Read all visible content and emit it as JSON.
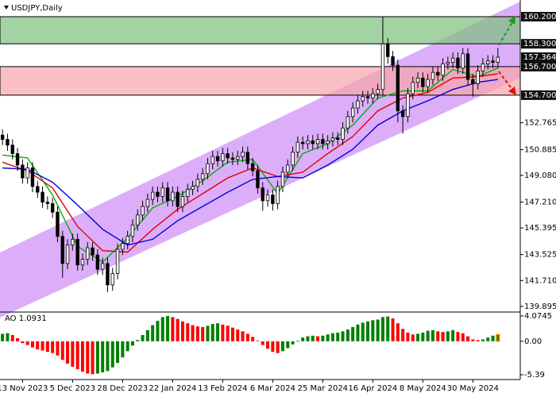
{
  "header": {
    "title": "USDJPY,Daily"
  },
  "chart_data": {
    "type": "candlestick",
    "categories": [
      null,
      null,
      null,
      null,
      "13 Nov 2023",
      null,
      null,
      null,
      null,
      null,
      null,
      null,
      null,
      null,
      "5 Dec 2023",
      null,
      null,
      null,
      null,
      null,
      null,
      null,
      null,
      null,
      "28 Dec 2023",
      null,
      null,
      null,
      null,
      null,
      null,
      null,
      null,
      null,
      "22 Jan 2024",
      null,
      null,
      null,
      null,
      null,
      null,
      null,
      null,
      null,
      "13 Feb 2024",
      null,
      null,
      null,
      null,
      null,
      null,
      null,
      null,
      null,
      "6 Mar 2024",
      null,
      null,
      null,
      null,
      null,
      null,
      null,
      null,
      null,
      "25 Mar 2024",
      null,
      null,
      null,
      null,
      null,
      null,
      null,
      null,
      null,
      "16 Apr 2024",
      null,
      null,
      null,
      null,
      null,
      null,
      null,
      null,
      null,
      "8 May 2024",
      null,
      null,
      null,
      null,
      null,
      null,
      null,
      null,
      null,
      "30 May 2024",
      null,
      null,
      null,
      null,
      null
    ],
    "open": [
      151.9,
      151.6,
      151.2,
      150.6,
      149.8,
      148.9,
      149.6,
      148.3,
      147.9,
      147.2,
      147.1,
      146.5,
      144.8,
      142.9,
      144.2,
      144.6,
      142.8,
      143.2,
      144.0,
      143.5,
      142.5,
      142.9,
      141.4,
      142.2,
      143.9,
      144.3,
      144.8,
      145.6,
      146.3,
      146.9,
      147.4,
      147.9,
      147.6,
      148.2,
      147.3,
      147.9,
      146.9,
      147.6,
      148.1,
      148.3,
      148.8,
      149.2,
      149.9,
      150.4,
      150.1,
      150.6,
      150.3,
      150.2,
      150.4,
      150.7,
      149.9,
      149.4,
      148.2,
      147.3,
      147.7,
      147.1,
      148.3,
      149.3,
      149.8,
      150.7,
      151.4,
      151.3,
      151.5,
      151.3,
      151.6,
      151.3,
      151.5,
      151.7,
      151.6,
      152.4,
      153.2,
      153.8,
      154.3,
      154.6,
      154.5,
      154.8,
      155.1,
      158.3,
      157.4,
      156.8,
      153.6,
      153.2,
      154.8,
      155.6,
      155.9,
      155.3,
      155.8,
      156.3,
      156.1,
      156.9,
      157.0,
      157.3,
      156.6,
      157.6,
      155.8,
      155.5,
      156.4,
      156.9,
      157.1,
      157.0
    ],
    "high": [
      152.3,
      152.0,
      151.6,
      151.0,
      150.2,
      150.0,
      150.0,
      148.7,
      148.3,
      147.6,
      147.5,
      146.9,
      145.2,
      144.6,
      145.0,
      145.0,
      143.6,
      144.4,
      144.4,
      143.9,
      143.3,
      143.3,
      142.6,
      144.3,
      144.7,
      145.2,
      146.0,
      146.7,
      147.3,
      147.8,
      148.3,
      148.3,
      148.6,
      148.6,
      148.3,
      148.3,
      148.0,
      148.5,
      148.7,
      149.2,
      149.6,
      150.3,
      150.8,
      150.8,
      151.0,
      151.0,
      150.7,
      150.8,
      151.1,
      151.1,
      150.3,
      149.8,
      148.6,
      148.1,
      148.1,
      148.7,
      149.7,
      150.2,
      151.1,
      151.8,
      151.8,
      151.9,
      151.9,
      152.0,
      152.0,
      151.9,
      152.1,
      152.1,
      152.8,
      153.6,
      154.2,
      154.7,
      155.0,
      155.0,
      155.2,
      155.5,
      160.2,
      158.7,
      157.8,
      157.2,
      154.0,
      155.2,
      156.0,
      156.3,
      156.3,
      156.2,
      156.7,
      156.7,
      157.3,
      157.4,
      157.7,
      157.7,
      158.0,
      158.0,
      156.2,
      156.8,
      157.3,
      157.5,
      157.5,
      158.0
    ],
    "low": [
      151.2,
      150.8,
      150.2,
      149.4,
      148.5,
      148.5,
      147.9,
      147.5,
      146.8,
      146.7,
      146.1,
      144.4,
      141.9,
      142.5,
      143.8,
      142.4,
      142.4,
      142.8,
      143.1,
      142.1,
      142.1,
      140.9,
      141.0,
      141.8,
      143.5,
      143.9,
      144.4,
      145.2,
      145.9,
      146.5,
      147.0,
      147.2,
      147.2,
      146.9,
      146.9,
      146.5,
      146.5,
      147.2,
      147.7,
      147.9,
      148.4,
      148.8,
      149.5,
      149.7,
      149.7,
      149.9,
      149.8,
      149.8,
      150.0,
      149.5,
      149.0,
      147.8,
      146.6,
      146.9,
      146.6,
      146.7,
      147.9,
      148.9,
      149.4,
      150.3,
      150.9,
      150.9,
      150.9,
      150.9,
      150.9,
      150.9,
      151.1,
      151.2,
      151.2,
      152.0,
      152.8,
      153.4,
      153.9,
      154.1,
      154.1,
      154.4,
      154.7,
      156.9,
      156.4,
      152.8,
      152.0,
      152.8,
      154.4,
      155.2,
      154.9,
      154.9,
      155.4,
      155.7,
      155.7,
      156.5,
      156.6,
      156.2,
      156.2,
      155.4,
      154.6,
      155.1,
      156.0,
      156.5,
      156.6,
      156.6
    ],
    "close": [
      151.6,
      151.2,
      150.6,
      149.8,
      148.9,
      149.6,
      148.3,
      147.9,
      147.2,
      147.1,
      146.5,
      144.8,
      142.9,
      144.2,
      144.6,
      142.8,
      143.2,
      144.0,
      143.5,
      142.5,
      142.9,
      141.4,
      142.2,
      143.9,
      144.3,
      144.8,
      145.6,
      146.3,
      146.9,
      147.4,
      147.9,
      147.6,
      148.2,
      147.3,
      147.9,
      146.9,
      147.6,
      148.1,
      148.3,
      148.8,
      149.2,
      149.9,
      150.4,
      150.1,
      150.6,
      150.3,
      150.2,
      150.4,
      150.7,
      149.9,
      149.4,
      148.2,
      147.3,
      147.7,
      147.1,
      148.3,
      149.3,
      149.8,
      150.7,
      151.4,
      151.3,
      151.5,
      151.3,
      151.6,
      151.3,
      151.5,
      151.7,
      151.6,
      152.4,
      153.2,
      153.8,
      154.3,
      154.6,
      154.5,
      154.8,
      155.1,
      158.3,
      157.4,
      156.8,
      153.6,
      153.2,
      154.8,
      155.6,
      155.9,
      155.3,
      155.8,
      156.3,
      156.1,
      156.9,
      157.0,
      157.3,
      156.6,
      157.6,
      155.8,
      155.5,
      156.4,
      156.9,
      157.1,
      157.0,
      157.364
    ],
    "up_color": "#ffffff",
    "down_color": "#000000",
    "ylim": [
      139.5,
      161.37
    ],
    "yticks": [
      {
        "value": 152.765,
        "label": "152.765"
      },
      {
        "value": 150.885,
        "label": "150.885"
      },
      {
        "value": 149.08,
        "label": "149.080"
      },
      {
        "value": 147.21,
        "label": "147.210"
      },
      {
        "value": 145.395,
        "label": "145.395"
      },
      {
        "value": 143.525,
        "label": "143.525"
      },
      {
        "value": 141.71,
        "label": "141.710"
      },
      {
        "value": 139.895,
        "label": "139.895"
      }
    ],
    "levels": [
      {
        "value": 160.2,
        "label": "160.200"
      },
      {
        "value": 158.3,
        "label": "158.300"
      },
      {
        "value": 157.364,
        "label": "157.364"
      },
      {
        "value": 156.7,
        "label": "156.700"
      },
      {
        "value": 154.7,
        "label": "154.700"
      }
    ],
    "zones": [
      {
        "from": 158.3,
        "to": 160.2,
        "color": "#7fc07f"
      },
      {
        "from": 154.7,
        "to": 156.7,
        "color": "#f7a6ab"
      }
    ],
    "lines": {
      "x": [
        0,
        5,
        10,
        15,
        20,
        25,
        30,
        35,
        40,
        45,
        50,
        55,
        60,
        65,
        70,
        75,
        80,
        85,
        90,
        95,
        99
      ],
      "series": [
        {
          "color": "#00b000",
          "values": [
            150.5,
            150.3,
            147.7,
            144.1,
            143.0,
            144.7,
            146.8,
            147.6,
            148.7,
            150.0,
            150.2,
            147.8,
            150.6,
            151.3,
            152.6,
            154.5,
            155.0,
            155.0,
            156.5,
            156.0,
            156.6
          ]
        },
        {
          "color": "#e00000",
          "values": [
            150.0,
            149.4,
            148.2,
            145.5,
            143.8,
            143.7,
            145.3,
            146.7,
            147.8,
            148.9,
            149.6,
            149.0,
            149.3,
            150.6,
            151.8,
            153.6,
            154.5,
            154.9,
            155.9,
            156.0,
            156.2
          ]
        },
        {
          "color": "#0000e0",
          "values": [
            149.6,
            149.5,
            148.6,
            147.0,
            145.3,
            144.2,
            144.6,
            145.9,
            146.9,
            147.9,
            148.8,
            149.0,
            148.9,
            149.8,
            150.9,
            152.6,
            153.6,
            154.3,
            155.1,
            155.6,
            155.8
          ]
        }
      ]
    },
    "indicator": {
      "type": "bar",
      "title": "AO 1.0931",
      "values": [
        1.2,
        1.3,
        1.0,
        0.5,
        -0.3,
        -0.6,
        -1.0,
        -1.3,
        -1.5,
        -1.7,
        -1.9,
        -2.3,
        -3.0,
        -3.6,
        -4.1,
        -4.5,
        -4.9,
        -5.2,
        -5.3,
        -5.2,
        -5.0,
        -4.8,
        -4.2,
        -3.5,
        -2.6,
        -1.6,
        -0.7,
        0.2,
        1.0,
        1.8,
        2.6,
        3.3,
        3.9,
        4.07,
        3.9,
        3.6,
        3.2,
        2.9,
        2.6,
        2.4,
        2.3,
        2.5,
        2.8,
        2.9,
        2.7,
        2.5,
        2.2,
        1.9,
        1.6,
        1.2,
        0.7,
        0.1,
        -0.6,
        -1.2,
        -1.7,
        -1.9,
        -1.6,
        -1.1,
        -0.5,
        0.1,
        0.6,
        0.8,
        0.9,
        0.8,
        0.9,
        1.1,
        1.3,
        1.4,
        1.6,
        1.9,
        2.3,
        2.7,
        3.0,
        3.2,
        3.4,
        3.5,
        3.9,
        4.0,
        3.7,
        2.9,
        2.0,
        1.4,
        1.1,
        1.2,
        1.4,
        1.7,
        1.8,
        1.6,
        1.5,
        1.6,
        1.8,
        1.5,
        1.3,
        0.8,
        0.3,
        0.2,
        0.3,
        0.6,
        0.9,
        1.0931
      ],
      "up_color": "#008000",
      "down_color": "#ff0000",
      "ylim": [
        -6.16,
        4.71
      ],
      "yticks": [
        4.0745,
        {
          "value": 0,
          "label": "0.00"
        },
        -5.39
      ]
    }
  }
}
